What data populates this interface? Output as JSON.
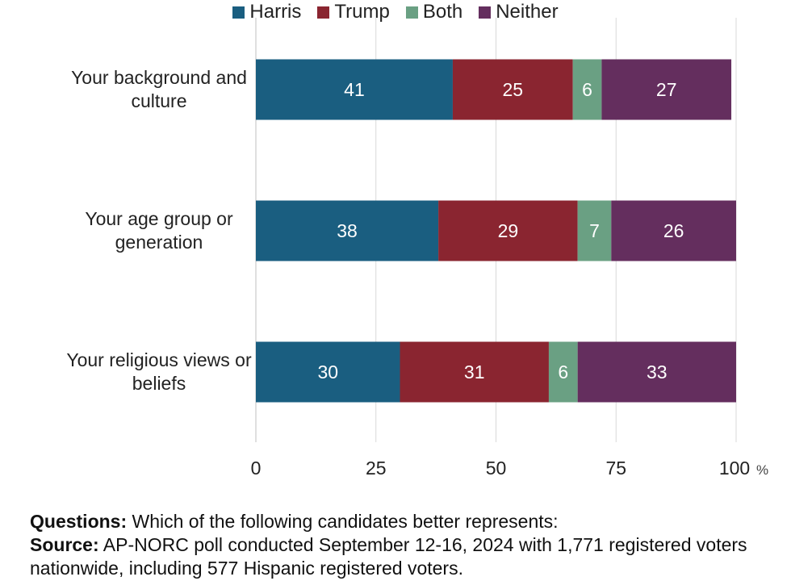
{
  "chart_data": {
    "type": "bar",
    "orientation": "horizontal",
    "stacked": true,
    "categories": [
      "Your background and culture",
      "Your age group or generation",
      "Your religious views or beliefs"
    ],
    "category_lines": [
      [
        "Your background and",
        "culture"
      ],
      [
        "Your age group or",
        "generation"
      ],
      [
        "Your religious views or",
        "beliefs"
      ]
    ],
    "series": [
      {
        "name": "Harris",
        "color": "#1a5e80",
        "values": [
          41,
          38,
          30
        ]
      },
      {
        "name": "Trump",
        "color": "#8a2530",
        "values": [
          25,
          29,
          31
        ]
      },
      {
        "name": "Both",
        "color": "#6aa083",
        "values": [
          6,
          7,
          6
        ]
      },
      {
        "name": "Neither",
        "color": "#642e5e",
        "values": [
          27,
          26,
          33
        ]
      }
    ],
    "xlim": [
      0,
      100
    ],
    "xticks": [
      0,
      25,
      50,
      75,
      100
    ],
    "xtick_labels": [
      "0",
      "25",
      "50",
      "75",
      "100"
    ],
    "x_unit": "%",
    "grid": true,
    "legend_position": "top"
  },
  "notes": {
    "questions_label": "Questions:",
    "questions_text": " Which of the following candidates better represents:",
    "source_label": "Source:",
    "source_text": " AP-NORC poll conducted September 12-16, 2024 with 1,771 registered voters nationwide, including 577 Hispanic registered voters."
  }
}
